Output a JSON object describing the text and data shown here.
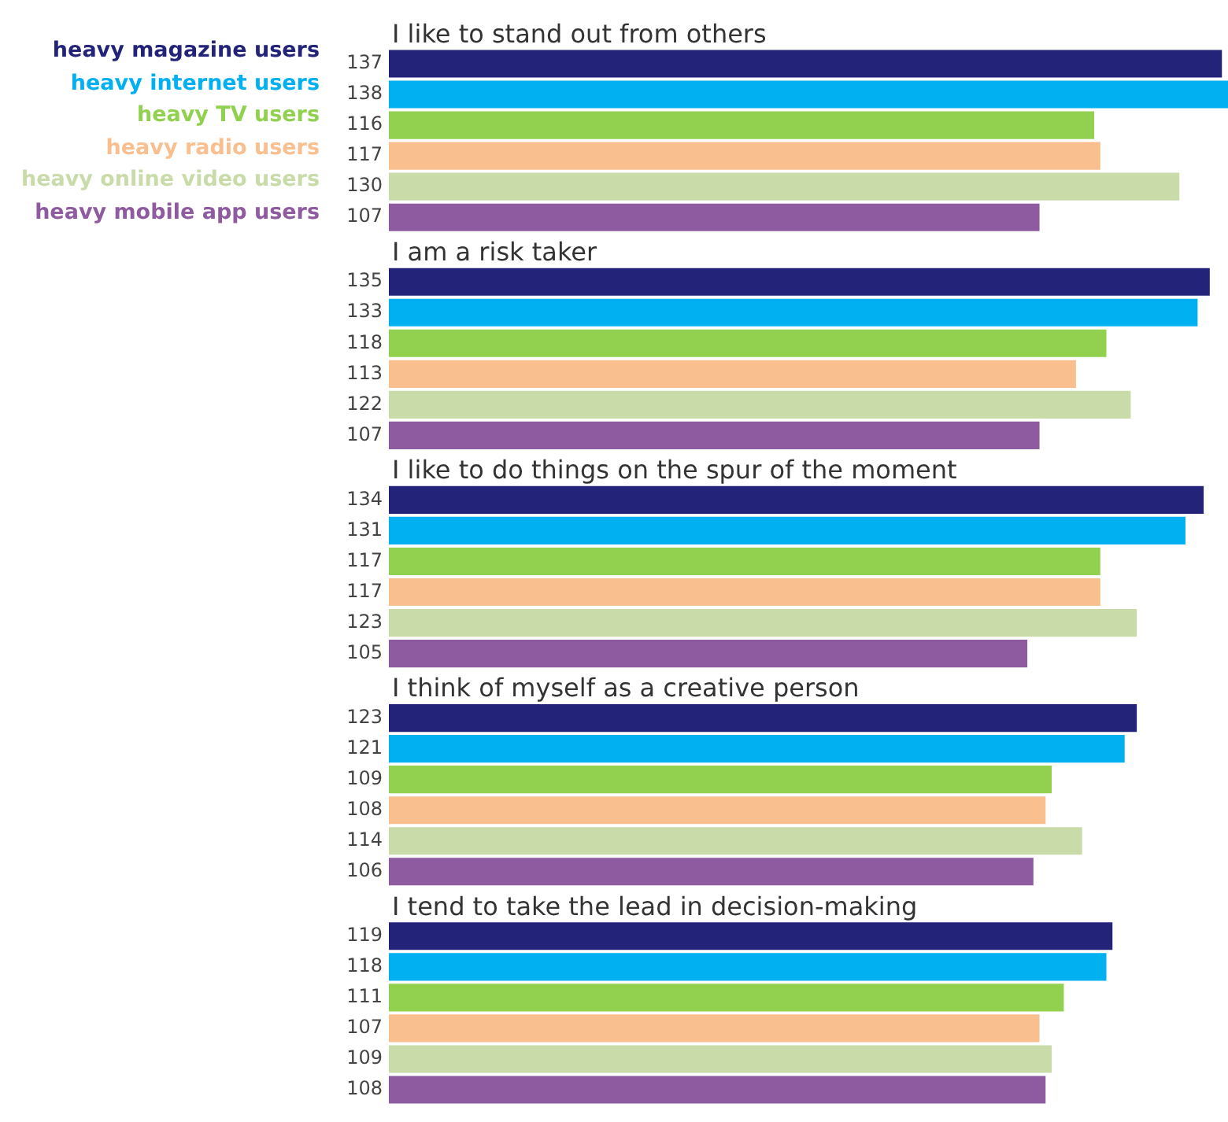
{
  "chart_data": {
    "type": "bar",
    "orientation": "horizontal",
    "legend": "top left",
    "data_labels": true,
    "categories": [
      "I like to stand out from others",
      "I am a risk taker",
      "I like to do things on the spur of the moment",
      "I think of myself as a creative person",
      "I tend to take the lead in decision-making"
    ],
    "series": [
      {
        "name": "heavy magazine users",
        "color": "#23237a",
        "values": [
          137,
          135,
          134,
          123,
          119
        ]
      },
      {
        "name": "heavy internet users",
        "color": "#00b0f0",
        "values": [
          138,
          133,
          131,
          121,
          118
        ]
      },
      {
        "name": "heavy TV users",
        "color": "#92d050",
        "values": [
          116,
          118,
          117,
          109,
          111
        ]
      },
      {
        "name": "heavy radio users",
        "color": "#f9bf8f",
        "values": [
          117,
          113,
          117,
          108,
          107
        ]
      },
      {
        "name": "heavy online video users",
        "color": "#c8dba8",
        "values": [
          130,
          122,
          123,
          114,
          109
        ]
      },
      {
        "name": "heavy mobile app users",
        "color": "#8e5aa0",
        "values": [
          107,
          107,
          105,
          106,
          108
        ]
      }
    ]
  }
}
